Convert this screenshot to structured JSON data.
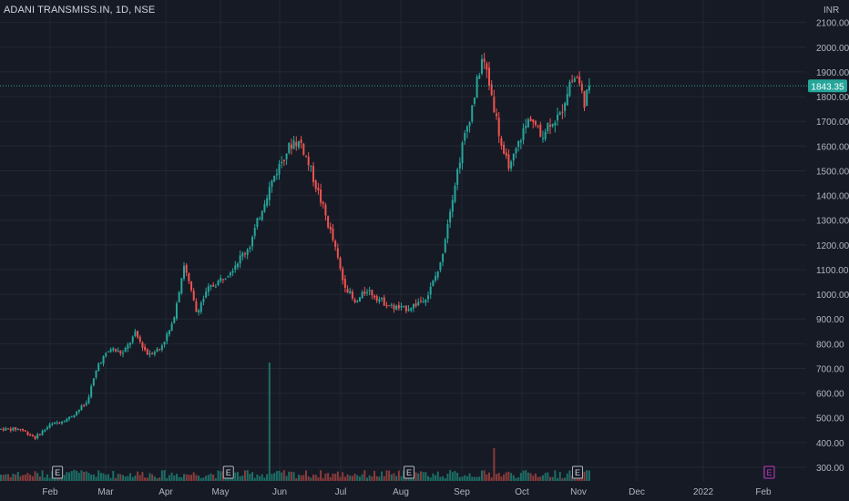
{
  "header": {
    "symbol": "ADANI TRANSMISS.IN, 1D, NSE"
  },
  "chart_data": {
    "type": "candlestick",
    "currency_label": "INR",
    "y_ticks": [
      300,
      400,
      500,
      600,
      700,
      800,
      900,
      1000,
      1100,
      1200,
      1300,
      1400,
      1500,
      1600,
      1700,
      1800,
      1900,
      2000,
      2100
    ],
    "y_tick_labels": [
      "300.00",
      "400.00",
      "500.00",
      "600.00",
      "700.00",
      "800.00",
      "900.00",
      "1000.00",
      "1100.00",
      "1200.00",
      "1300.00",
      "1400.00",
      "1500.00",
      "1600.00",
      "1700.00",
      "1800.00",
      "1900.00",
      "2000.00",
      "2100.00"
    ],
    "x_labels": [
      "Feb",
      "Mar",
      "Apr",
      "May",
      "Jun",
      "Jul",
      "Aug",
      "Sep",
      "Oct",
      "Nov",
      "Dec",
      "2022",
      "Feb"
    ],
    "current_price": 1843.35,
    "current_price_label": "1843.35",
    "earnings_marker": "E",
    "colors": {
      "up": "#26a69a",
      "down": "#ef5350",
      "up_volume": "#1c6f66",
      "down_volume": "#8b3b3b",
      "price_line": "#26a69a",
      "grid": "#232733",
      "text": "#b2b5be",
      "future_earnings": "#c238c2"
    },
    "guide_prices": [
      [
        0,
        455
      ],
      [
        8,
        455
      ],
      [
        14,
        420
      ],
      [
        20,
        470
      ],
      [
        28,
        500
      ],
      [
        35,
        560
      ],
      [
        40,
        720
      ],
      [
        45,
        780
      ],
      [
        50,
        760
      ],
      [
        55,
        840
      ],
      [
        60,
        760
      ],
      [
        65,
        780
      ],
      [
        70,
        870
      ],
      [
        75,
        1120
      ],
      [
        80,
        930
      ],
      [
        85,
        1020
      ],
      [
        90,
        1060
      ],
      [
        95,
        1110
      ],
      [
        102,
        1200
      ],
      [
        108,
        1380
      ],
      [
        112,
        1480
      ],
      [
        117,
        1580
      ],
      [
        120,
        1620
      ],
      [
        123,
        1610
      ],
      [
        127,
        1500
      ],
      [
        131,
        1380
      ],
      [
        136,
        1220
      ],
      [
        140,
        1060
      ],
      [
        145,
        960
      ],
      [
        150,
        1020
      ],
      [
        155,
        980
      ],
      [
        160,
        950
      ],
      [
        165,
        940
      ],
      [
        170,
        960
      ],
      [
        175,
        1000
      ],
      [
        180,
        1120
      ],
      [
        184,
        1350
      ],
      [
        189,
        1600
      ],
      [
        193,
        1760
      ],
      [
        197,
        1950
      ],
      [
        199,
        1900
      ],
      [
        202,
        1760
      ],
      [
        206,
        1550
      ],
      [
        209,
        1520
      ],
      [
        213,
        1640
      ],
      [
        217,
        1720
      ],
      [
        221,
        1640
      ],
      [
        225,
        1700
      ],
      [
        229,
        1720
      ],
      [
        233,
        1860
      ],
      [
        236,
        1880
      ],
      [
        239,
        1780
      ],
      [
        241,
        1843
      ]
    ],
    "earnings_bars": [
      23,
      93,
      167,
      236
    ],
    "volume_spikes": [
      [
        110,
        6.0
      ],
      [
        202,
        2.4
      ],
      [
        30,
        1.5
      ]
    ]
  }
}
